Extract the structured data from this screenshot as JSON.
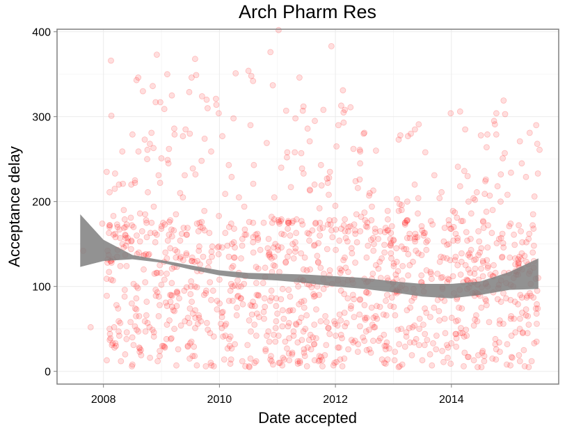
{
  "chart_data": {
    "type": "scatter",
    "title": "Arch Pharm Res",
    "xlabel": "Date accepted",
    "ylabel": "Acceptance delay",
    "xlim": [
      2007.2,
      2015.85
    ],
    "ylim": [
      -15,
      403
    ],
    "x_ticks": [
      2008,
      2010,
      2012,
      2014
    ],
    "x_tick_labels": [
      "2008",
      "2010",
      "2012",
      "2014"
    ],
    "y_ticks": [
      0,
      100,
      200,
      300,
      400
    ],
    "y_tick_labels": [
      "0",
      "100",
      "200",
      "300",
      "400"
    ],
    "grid": true,
    "legend": "none",
    "colors": {
      "points": "#ff0000",
      "band": "#7f7f7f",
      "panel_border": "#7f7f7f",
      "grid_major": "#ebebeb",
      "grid_minor": "#f5f5f5"
    },
    "series": [
      {
        "points": [
          [
            2007.65,
            142
          ],
          [
            2007.78,
            52
          ],
          [
            2007.98,
            174
          ],
          [
            2008.13,
            366
          ],
          [
            2008.2,
            233
          ],
          [
            2008.35,
            190
          ],
          [
            2008.5,
            279
          ],
          [
            2008.57,
            343
          ],
          [
            2008.6,
            346
          ],
          [
            2008.68,
            330
          ],
          [
            2008.8,
            268
          ],
          [
            2008.85,
            336
          ],
          [
            2008.9,
            317
          ],
          [
            2008.92,
            373
          ],
          [
            2008.98,
            317
          ],
          [
            2009.05,
            309
          ],
          [
            2009.1,
            350
          ],
          [
            2009.18,
            325
          ],
          [
            2009.22,
            286
          ],
          [
            2009.48,
            329
          ],
          [
            2009.52,
            346
          ],
          [
            2009.58,
            368
          ],
          [
            2009.6,
            349
          ],
          [
            2009.7,
            324
          ],
          [
            2009.78,
            320
          ],
          [
            2009.94,
            321
          ],
          [
            2010.05,
            277
          ],
          [
            2010.28,
            351
          ],
          [
            2010.5,
            354
          ],
          [
            2010.55,
            348
          ],
          [
            2010.58,
            342
          ],
          [
            2010.88,
            376
          ],
          [
            2010.92,
            337
          ],
          [
            2011.02,
            402
          ],
          [
            2011.3,
            258
          ],
          [
            2011.38,
            346
          ],
          [
            2011.45,
            312
          ],
          [
            2011.52,
            286
          ],
          [
            2011.75,
            243
          ],
          [
            2011.93,
            383
          ],
          [
            2012.1,
            313
          ],
          [
            2012.13,
            331
          ],
          [
            2012.42,
            261
          ],
          [
            2012.7,
            260
          ],
          [
            2013.12,
            278
          ],
          [
            2013.25,
            277
          ],
          [
            2013.3,
            280
          ],
          [
            2013.55,
            258
          ],
          [
            2014.15,
            306
          ],
          [
            2014.62,
            279
          ],
          [
            2014.75,
            291
          ],
          [
            2014.9,
            319
          ],
          [
            2014.92,
            257
          ],
          [
            2015.18,
            271
          ],
          [
            2015.35,
            281
          ],
          [
            2015.48,
            268
          ],
          [
            2015.52,
            261
          ],
          [
            2009.0,
            251
          ],
          [
            2008.95,
            231
          ],
          [
            2009.25,
            185
          ]
        ],
        "generated_cloud": {
          "count": 1240,
          "x_range": [
            2008.05,
            2015.5
          ],
          "typical_range": [
            5,
            180
          ],
          "seed": 2017
        }
      }
    ],
    "smooth_band": {
      "x": [
        2007.6,
        2008.0,
        2008.5,
        2009.0,
        2009.5,
        2010.0,
        2010.5,
        2011.0,
        2011.5,
        2012.0,
        2012.5,
        2013.0,
        2013.5,
        2014.0,
        2014.5,
        2015.0,
        2015.5
      ],
      "lower": [
        123,
        130,
        132,
        128,
        120,
        113,
        109,
        107,
        104,
        100,
        97,
        93,
        88,
        86,
        90,
        96,
        97
      ],
      "upper": [
        185,
        155,
        137,
        131,
        125,
        119,
        116,
        115,
        114,
        112,
        110,
        106,
        103,
        103,
        106,
        117,
        133
      ]
    }
  }
}
